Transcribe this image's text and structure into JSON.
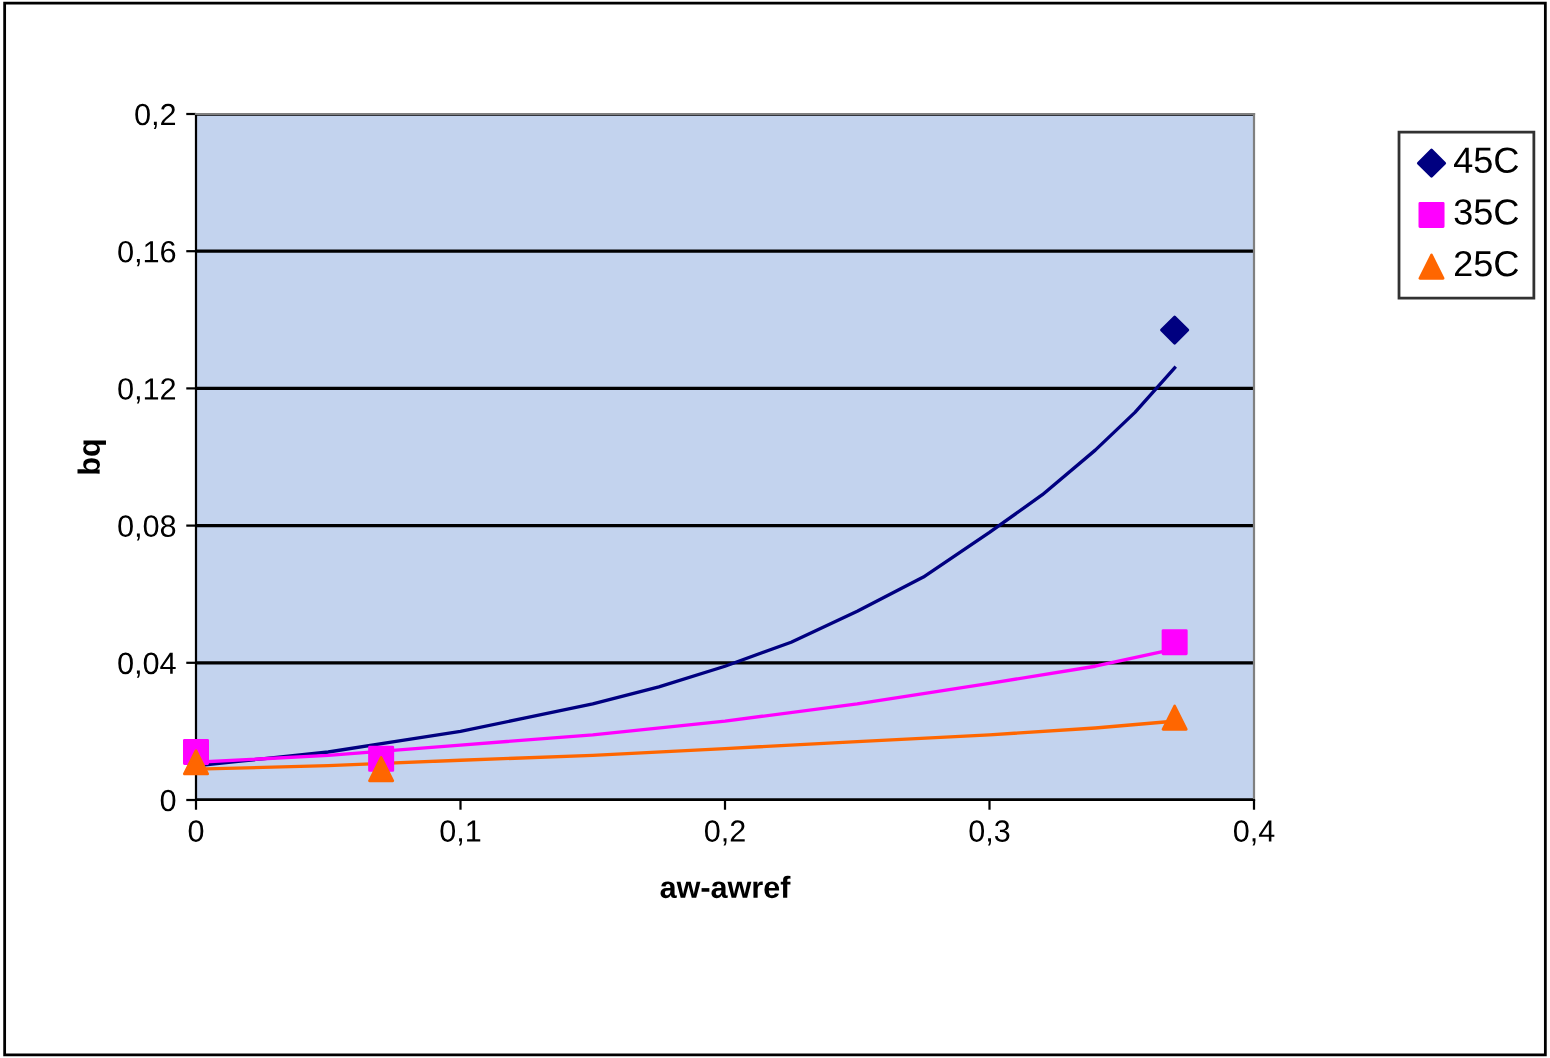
{
  "chart_data": {
    "type": "scatter",
    "xlabel": "aw-awref",
    "ylabel": "bq",
    "xlim": [
      0,
      0.4
    ],
    "ylim": [
      0,
      0.2
    ],
    "xticks": [
      0,
      {
        "value": 0.1,
        "label": "0,1"
      },
      {
        "value": 0.2,
        "label": "0,2"
      },
      {
        "value": 0.3,
        "label": "0,3"
      },
      {
        "value": 0.4,
        "label": "0,4"
      }
    ],
    "yticks": [
      0,
      {
        "value": 0.04,
        "label": "0,04"
      },
      {
        "value": 0.08,
        "label": "0,08"
      },
      {
        "value": 0.12,
        "label": "0,12"
      },
      {
        "value": 0.16,
        "label": "0,16"
      },
      {
        "value": 0.2,
        "label": "0,2"
      }
    ],
    "grid": "y",
    "legend": "top right",
    "series": [
      {
        "name": "45C",
        "marker": "diamond",
        "color": "#000080",
        "x": [
          0.37
        ],
        "values": [
          0.137
        ]
      },
      {
        "name": "35C",
        "marker": "square",
        "color": "#ff00ff",
        "x": [
          0,
          0.07,
          0.37
        ],
        "values": [
          0.014,
          0.012,
          0.046
        ]
      },
      {
        "name": "25C",
        "marker": "triangle",
        "color": "#ff6600",
        "x": [
          0,
          0.07,
          0.37
        ],
        "values": [
          0.011,
          0.009,
          0.024
        ]
      },
      {
        "type": "line",
        "color": "#000080",
        "x": [
          0,
          0.025,
          0.05,
          0.075,
          0.1,
          0.125,
          0.15,
          0.175,
          0.2,
          0.225,
          0.25,
          0.275,
          0.3,
          0.32,
          0.34,
          0.355,
          0.37
        ],
        "values": [
          0.01,
          0.012,
          0.014,
          0.017,
          0.02,
          0.024,
          0.028,
          0.033,
          0.039,
          0.046,
          0.055,
          0.065,
          0.078,
          0.089,
          0.102,
          0.113,
          0.126
        ]
      },
      {
        "type": "line",
        "color": "#ff00ff",
        "x": [
          0,
          0.05,
          0.1,
          0.15,
          0.2,
          0.25,
          0.3,
          0.34,
          0.37
        ],
        "values": [
          0.011,
          0.013,
          0.016,
          0.019,
          0.023,
          0.028,
          0.034,
          0.039,
          0.044
        ]
      },
      {
        "type": "line",
        "color": "#ff6600",
        "x": [
          0,
          0.05,
          0.1,
          0.15,
          0.2,
          0.25,
          0.3,
          0.34,
          0.37
        ],
        "values": [
          0.009,
          0.01,
          0.0116,
          0.013,
          0.015,
          0.017,
          0.019,
          0.021,
          0.023
        ]
      }
    ]
  }
}
